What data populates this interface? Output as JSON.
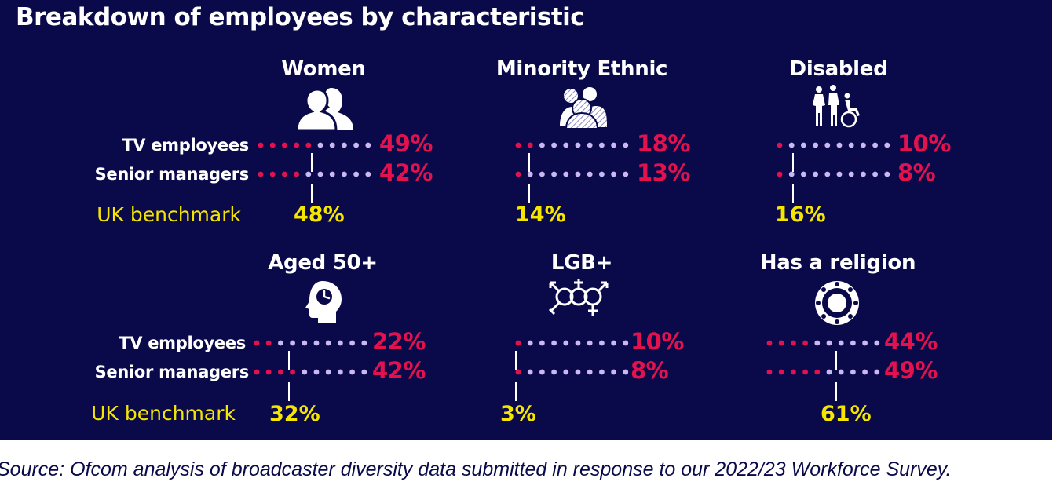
{
  "title": "Breakdown of employees by characteristic",
  "source": "Source: Ofcom analysis of broadcaster diversity data submitted in response to our 2022/23 Workforce Survey.",
  "row_labels": {
    "tv": "TV employees",
    "senior": "Senior managers",
    "benchmark": "UK benchmark"
  },
  "colors": {
    "background": "#0a0a4a",
    "highlight": "#e3124f",
    "rest": "#c9b8f2",
    "benchmark": "#f5e600",
    "text": "#ffffff"
  },
  "chart_data": {
    "type": "dot-plot",
    "title": "Breakdown of employees by characteristic",
    "series_names": [
      "TV employees",
      "Senior managers",
      "UK benchmark"
    ],
    "categories": [
      {
        "name": "Women",
        "icon": "women-silhouettes-icon",
        "tv_employees": 49,
        "senior_managers": 42,
        "uk_benchmark": 48,
        "tv_label": "49%",
        "senior_label": "42%",
        "benchmark_label": "48%"
      },
      {
        "name": "Minority Ethnic",
        "icon": "diverse-group-icon",
        "tv_employees": 18,
        "senior_managers": 13,
        "uk_benchmark": 14,
        "tv_label": "18%",
        "senior_label": "13%",
        "benchmark_label": "14%"
      },
      {
        "name": "Disabled",
        "icon": "disability-icon",
        "tv_employees": 10,
        "senior_managers": 8,
        "uk_benchmark": 16,
        "tv_label": "10%",
        "senior_label": "8%",
        "benchmark_label": "16%"
      },
      {
        "name": "Aged 50+",
        "icon": "head-clock-icon",
        "tv_employees": 22,
        "senior_managers": 42,
        "uk_benchmark": 32,
        "tv_label": "22%",
        "senior_label": "42%",
        "benchmark_label": "32%"
      },
      {
        "name": "LGB+",
        "icon": "gender-symbols-icon",
        "tv_employees": 10,
        "senior_managers": 8,
        "uk_benchmark": 3,
        "tv_label": "10%",
        "senior_label": "8%",
        "benchmark_label": "3%"
      },
      {
        "name": "Has a religion",
        "icon": "religion-wheel-icon",
        "tv_employees": 44,
        "senior_managers": 49,
        "uk_benchmark": 61,
        "tv_label": "44%",
        "senior_label": "49%",
        "benchmark_label": "61%"
      }
    ]
  }
}
